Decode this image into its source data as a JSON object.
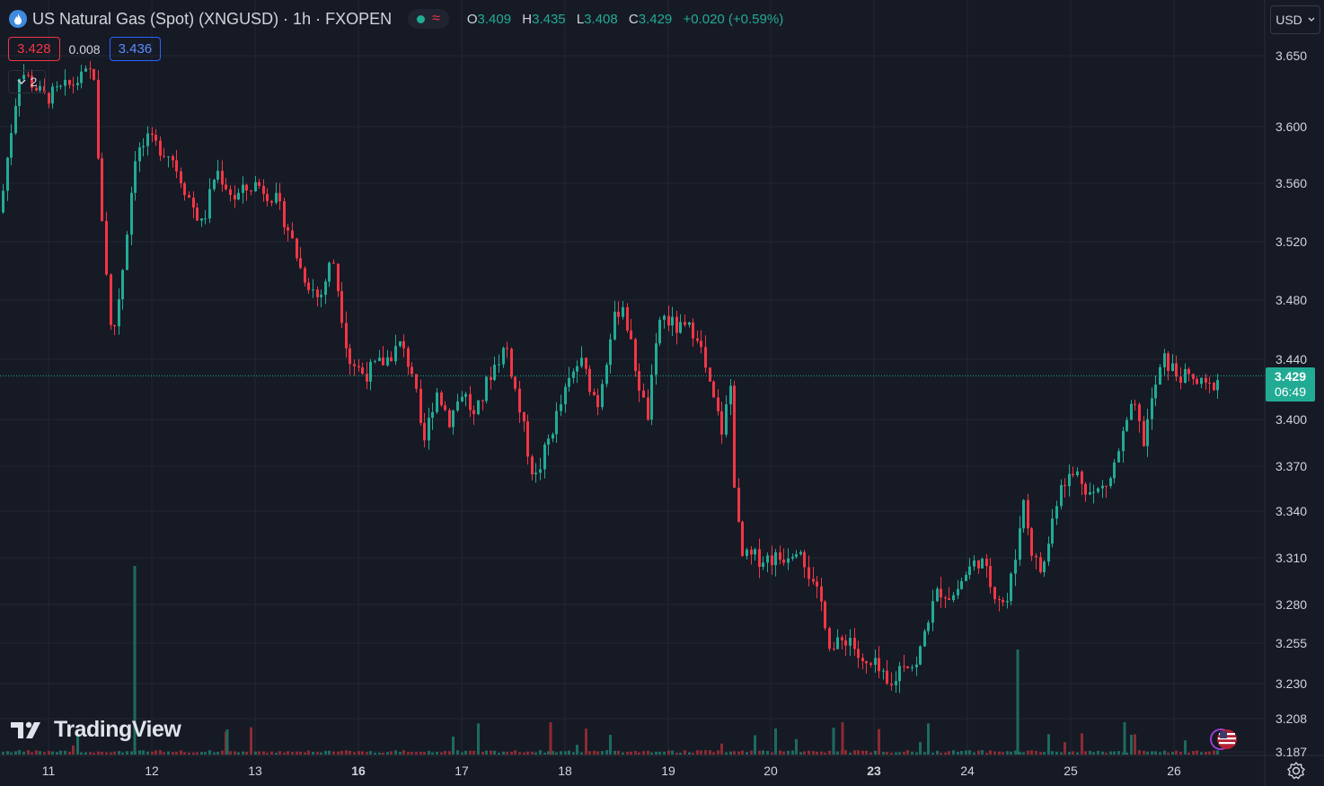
{
  "header": {
    "title": "US Natural Gas (Spot) (XNGUSD) · 1h · FXOPEN",
    "ohlc": [
      {
        "key": "O",
        "value": "3.409"
      },
      {
        "key": "H",
        "value": "3.435"
      },
      {
        "key": "L",
        "value": "3.408"
      },
      {
        "key": "C",
        "value": "3.429"
      }
    ],
    "change": "+0.020 (+0.59%)",
    "wave_symbol": "≈"
  },
  "quote": {
    "sell": "3.428",
    "spread": "0.008",
    "buy": "3.436"
  },
  "indicators_toggle": {
    "count": "2"
  },
  "currency": {
    "label": "USD"
  },
  "last_price": {
    "value": "3.429",
    "countdown": "06:49"
  },
  "logo": {
    "text": "TradingView"
  },
  "colors": {
    "up": "#22ab94",
    "down": "#f23645",
    "background": "#161a25",
    "grid": "#232632",
    "text": "#d1d4dc"
  },
  "chart_data": {
    "type": "candlestick",
    "title": "US Natural Gas (Spot) (XNGUSD) · 1h · FXOPEN",
    "y_tick_labels": [
      "3.650",
      "3.600",
      "3.560",
      "3.520",
      "3.480",
      "3.440",
      "3.400",
      "3.370",
      "3.340",
      "3.310",
      "3.280",
      "3.255",
      "3.230",
      "3.208",
      "3.187"
    ],
    "y_tick_values": [
      3.65,
      3.6,
      3.56,
      3.52,
      3.48,
      3.44,
      3.4,
      3.37,
      3.34,
      3.31,
      3.28,
      3.255,
      3.23,
      3.208,
      3.187
    ],
    "x_tick_labels": [
      {
        "label": "11",
        "bold": false
      },
      {
        "label": "12",
        "bold": false
      },
      {
        "label": "13",
        "bold": false
      },
      {
        "label": "16",
        "bold": true
      },
      {
        "label": "17",
        "bold": false
      },
      {
        "label": "18",
        "bold": false
      },
      {
        "label": "19",
        "bold": false
      },
      {
        "label": "20",
        "bold": false
      },
      {
        "label": "23",
        "bold": true
      },
      {
        "label": "24",
        "bold": false
      },
      {
        "label": "25",
        "bold": false
      },
      {
        "label": "26",
        "bold": false
      }
    ],
    "price_anchors": [
      [
        0,
        3.54
      ],
      [
        8,
        3.58
      ],
      [
        22,
        3.64
      ],
      [
        50,
        3.62
      ],
      [
        80,
        3.63
      ],
      [
        104,
        3.64
      ],
      [
        108,
        3.58
      ],
      [
        118,
        3.5
      ],
      [
        124,
        3.45
      ],
      [
        136,
        3.5
      ],
      [
        150,
        3.58
      ],
      [
        165,
        3.59
      ],
      [
        190,
        3.58
      ],
      [
        210,
        3.55
      ],
      [
        225,
        3.53
      ],
      [
        240,
        3.57
      ],
      [
        260,
        3.55
      ],
      [
        285,
        3.56
      ],
      [
        305,
        3.55
      ],
      [
        320,
        3.53
      ],
      [
        335,
        3.5
      ],
      [
        355,
        3.48
      ],
      [
        370,
        3.51
      ],
      [
        388,
        3.44
      ],
      [
        405,
        3.43
      ],
      [
        430,
        3.44
      ],
      [
        445,
        3.45
      ],
      [
        460,
        3.43
      ],
      [
        470,
        3.38
      ],
      [
        485,
        3.42
      ],
      [
        500,
        3.4
      ],
      [
        515,
        3.42
      ],
      [
        528,
        3.4
      ],
      [
        545,
        3.43
      ],
      [
        563,
        3.45
      ],
      [
        580,
        3.4
      ],
      [
        595,
        3.36
      ],
      [
        612,
        3.39
      ],
      [
        630,
        3.42
      ],
      [
        645,
        3.44
      ],
      [
        665,
        3.41
      ],
      [
        680,
        3.46
      ],
      [
        692,
        3.48
      ],
      [
        705,
        3.44
      ],
      [
        720,
        3.4
      ],
      [
        735,
        3.47
      ],
      [
        755,
        3.46
      ],
      [
        775,
        3.46
      ],
      [
        790,
        3.42
      ],
      [
        805,
        3.39
      ],
      [
        812,
        3.43
      ],
      [
        818,
        3.35
      ],
      [
        825,
        3.31
      ],
      [
        845,
        3.31
      ],
      [
        870,
        3.31
      ],
      [
        890,
        3.32
      ],
      [
        905,
        3.29
      ],
      [
        915,
        3.28
      ],
      [
        925,
        3.25
      ],
      [
        945,
        3.26
      ],
      [
        960,
        3.24
      ],
      [
        975,
        3.24
      ],
      [
        990,
        3.225
      ],
      [
        1005,
        3.245
      ],
      [
        1020,
        3.24
      ],
      [
        1032,
        3.27
      ],
      [
        1045,
        3.29
      ],
      [
        1060,
        3.285
      ],
      [
        1075,
        3.3
      ],
      [
        1090,
        3.31
      ],
      [
        1105,
        3.29
      ],
      [
        1120,
        3.28
      ],
      [
        1130,
        3.31
      ],
      [
        1138,
        3.35
      ],
      [
        1150,
        3.31
      ],
      [
        1160,
        3.3
      ],
      [
        1170,
        3.33
      ],
      [
        1180,
        3.36
      ],
      [
        1200,
        3.365
      ],
      [
        1215,
        3.35
      ],
      [
        1235,
        3.36
      ],
      [
        1250,
        3.39
      ],
      [
        1262,
        3.41
      ],
      [
        1272,
        3.385
      ],
      [
        1285,
        3.42
      ],
      [
        1295,
        3.44
      ],
      [
        1310,
        3.43
      ],
      [
        1330,
        3.425
      ],
      [
        1345,
        3.42
      ],
      [
        1357,
        3.429
      ]
    ],
    "ylim": [
      3.185,
      3.66
    ],
    "last_value": 3.429,
    "volume_present": true
  }
}
